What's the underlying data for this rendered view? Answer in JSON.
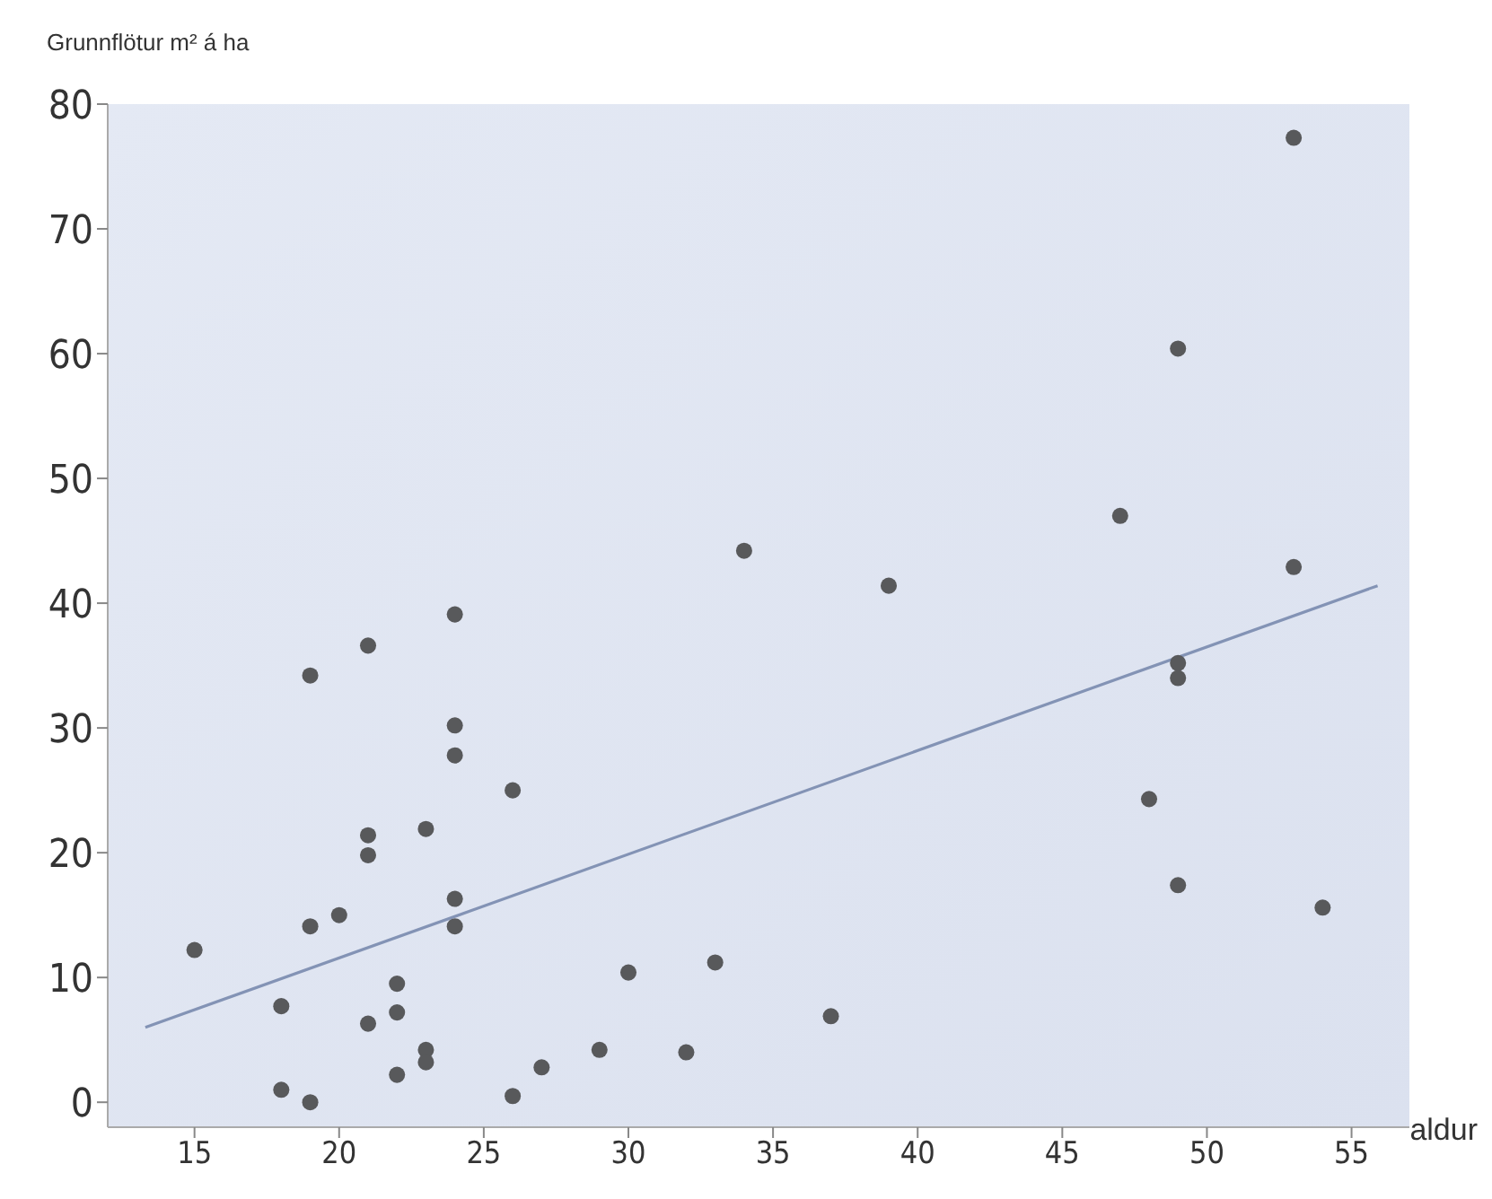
{
  "chart_data": {
    "type": "scatter",
    "ylabel": "Grunnflötur m² á ha",
    "xlabel": "aldur",
    "xlim": [
      12,
      57
    ],
    "ylim": [
      -2,
      80
    ],
    "xticks": [
      15,
      20,
      25,
      30,
      35,
      40,
      45,
      50,
      55
    ],
    "yticks": [
      0,
      10,
      20,
      30,
      40,
      50,
      60,
      70,
      80
    ],
    "grid": false,
    "series": [
      {
        "marker": "circle",
        "color": "#58595b",
        "x": [
          24,
          21,
          19,
          24,
          24,
          26,
          23,
          21,
          21,
          24,
          24,
          19,
          20,
          15,
          30,
          18,
          22,
          22,
          21,
          23,
          23,
          22,
          27,
          29,
          26,
          18,
          19,
          34,
          39,
          33,
          37,
          32,
          53,
          49,
          47,
          53,
          49,
          49,
          48,
          49,
          54
        ],
        "values": [
          39.1,
          36.6,
          34.2,
          30.2,
          27.8,
          25.0,
          21.9,
          21.4,
          19.8,
          16.3,
          14.1,
          14.1,
          15.0,
          12.2,
          10.4,
          7.7,
          9.5,
          7.2,
          6.3,
          4.2,
          3.2,
          2.2,
          2.8,
          4.2,
          0.5,
          1.0,
          0.0,
          44.2,
          41.4,
          11.2,
          6.9,
          4.0,
          77.3,
          60.4,
          47.0,
          42.9,
          35.2,
          34.0,
          24.3,
          17.4,
          15.6
        ]
      },
      {
        "type": "line",
        "marker": "none",
        "color": "#8393b5",
        "x": [
          13.3,
          55.9
        ],
        "values": [
          6.0,
          41.4
        ]
      }
    ]
  }
}
